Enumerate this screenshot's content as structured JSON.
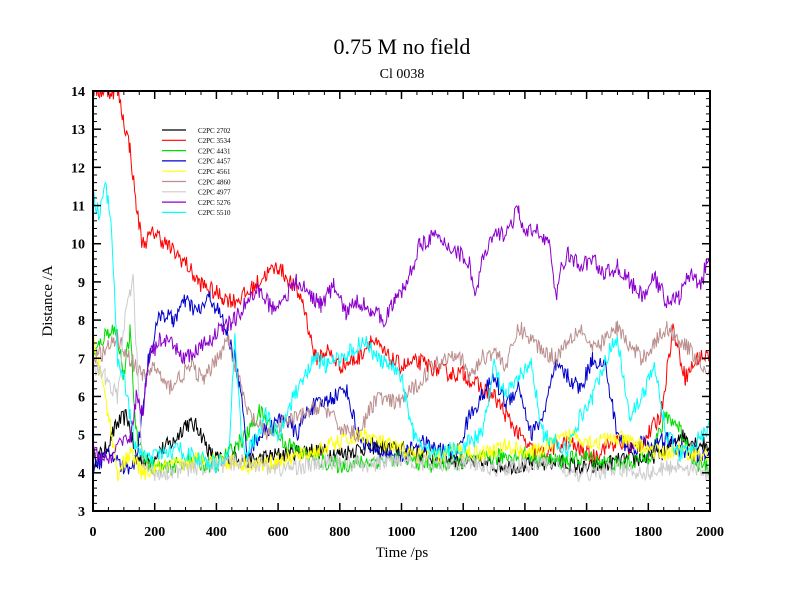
{
  "chart_data": {
    "type": "line",
    "title": "0.75 M no field",
    "subtitle": "Cl 0038",
    "xlabel": "Time /ps",
    "ylabel": "Distance /A",
    "xlim": [
      0,
      2000
    ],
    "ylim": [
      3,
      14
    ],
    "xticks": [
      "0",
      "200",
      "400",
      "600",
      "800",
      "1000",
      "1200",
      "1400",
      "1600",
      "1800",
      "2000"
    ],
    "yticks": [
      "3",
      "4",
      "5",
      "6",
      "7",
      "8",
      "9",
      "10",
      "11",
      "12",
      "13",
      "14"
    ],
    "legend_position": "top-left",
    "series": [
      {
        "name": "C2PC 2702",
        "color": "#000000",
        "x": [
          0,
          40,
          80,
          110,
          140,
          180,
          220,
          260,
          300,
          340,
          380,
          420,
          460,
          500,
          560,
          620,
          700,
          800,
          900,
          1000,
          1100,
          1200,
          1300,
          1400,
          1500,
          1600,
          1700,
          1800,
          1860,
          1900,
          1950,
          2000
        ],
        "y": [
          4.3,
          4.6,
          5.3,
          5.5,
          4.4,
          4.3,
          4.6,
          4.8,
          5.3,
          5.2,
          4.5,
          4.3,
          4.5,
          4.3,
          4.4,
          4.5,
          4.6,
          4.5,
          4.7,
          4.6,
          4.4,
          4.3,
          4.2,
          4.2,
          4.3,
          4.1,
          4.3,
          4.4,
          4.6,
          5.0,
          4.8,
          4.7
        ]
      },
      {
        "name": "C2PC 3534",
        "color": "#ff0000",
        "x": [
          0,
          60,
          80,
          100,
          120,
          140,
          160,
          200,
          260,
          300,
          340,
          380,
          420,
          460,
          500,
          560,
          600,
          640,
          680,
          720,
          760,
          800,
          860,
          900,
          960,
          1000,
          1060,
          1120,
          1160,
          1200,
          1260,
          1300,
          1340,
          1380,
          1420,
          1460,
          1500,
          1540,
          1580,
          1620,
          1660,
          1700,
          1760,
          1800,
          1840,
          1880,
          1920,
          1960,
          2000
        ],
        "y": [
          14,
          14,
          14,
          13.2,
          12.5,
          11,
          10,
          10.3,
          9.8,
          9.5,
          9.0,
          8.8,
          8.6,
          8.5,
          8.7,
          9.2,
          9.4,
          9.0,
          8.5,
          7.0,
          7.2,
          6.8,
          7.0,
          7.5,
          7.0,
          6.8,
          6.9,
          6.7,
          6.6,
          6.6,
          6.2,
          6.0,
          5.5,
          5.0,
          4.6,
          4.5,
          4.7,
          4.8,
          4.6,
          4.4,
          4.7,
          4.8,
          4.6,
          5.0,
          5.5,
          7.8,
          6.5,
          7.0,
          7.1
        ]
      },
      {
        "name": "C2PC 4431",
        "color": "#00dd00",
        "x": [
          0,
          30,
          60,
          80,
          100,
          120,
          140,
          180,
          240,
          300,
          400,
          500,
          540,
          580,
          620,
          700,
          800,
          900,
          1000,
          1100,
          1200,
          1300,
          1400,
          1500,
          1600,
          1700,
          1800,
          1860,
          1900,
          1950,
          2000
        ],
        "y": [
          7.0,
          7.5,
          7.8,
          7.6,
          6.5,
          7.7,
          5.0,
          4.2,
          4.1,
          4.3,
          4.2,
          5.0,
          5.6,
          5.2,
          4.8,
          4.4,
          4.2,
          4.3,
          4.4,
          4.2,
          4.3,
          4.4,
          4.5,
          4.3,
          4.4,
          4.2,
          4.4,
          5.5,
          5.2,
          4.3,
          4.1
        ]
      },
      {
        "name": "C2PC 4457",
        "color": "#0000cc",
        "x": [
          0,
          60,
          100,
          140,
          180,
          220,
          260,
          300,
          340,
          380,
          420,
          460,
          480,
          500,
          540,
          580,
          620,
          660,
          700,
          740,
          780,
          820,
          860,
          900,
          960,
          1000,
          1060,
          1120,
          1180,
          1220,
          1260,
          1300,
          1340,
          1380,
          1420,
          1460,
          1500,
          1540,
          1580,
          1620,
          1660,
          1700,
          1740,
          1780,
          1820,
          1860,
          1900,
          1960,
          2000
        ],
        "y": [
          4.2,
          4.5,
          4.1,
          4.3,
          7.0,
          8.2,
          8.0,
          8.5,
          8.2,
          8.6,
          8.0,
          7.0,
          6.0,
          4.5,
          5.0,
          5.2,
          5.5,
          5.0,
          5.7,
          5.8,
          6.0,
          6.2,
          5.0,
          4.6,
          4.5,
          4.4,
          4.8,
          4.6,
          4.5,
          5.5,
          6.0,
          6.5,
          5.8,
          6.3,
          5.0,
          5.5,
          6.8,
          6.5,
          6.2,
          7.0,
          6.8,
          5.0,
          4.6,
          4.8,
          4.7,
          4.9,
          4.6,
          4.5,
          4.3
        ]
      },
      {
        "name": "C2PC 4561",
        "color": "#ffff00",
        "x": [
          0,
          40,
          80,
          120,
          160,
          200,
          280,
          360,
          440,
          520,
          600,
          700,
          800,
          880,
          960,
          1040,
          1100,
          1180,
          1260,
          1340,
          1420,
          1500,
          1560,
          1620,
          1700,
          1780,
          1840,
          1900,
          1960,
          2000
        ],
        "y": [
          7.5,
          6.0,
          4.0,
          4.5,
          4.0,
          4.1,
          4.2,
          4.4,
          4.3,
          4.2,
          4.3,
          4.5,
          4.8,
          5.0,
          4.7,
          4.5,
          4.4,
          4.6,
          4.5,
          4.7,
          4.5,
          4.8,
          5.0,
          4.8,
          4.9,
          4.7,
          4.5,
          4.6,
          4.5,
          4.4
        ]
      },
      {
        "name": "C2PC 4860",
        "color": "#bc8f8f",
        "x": [
          0,
          40,
          80,
          120,
          160,
          200,
          240,
          280,
          320,
          360,
          400,
          440,
          500,
          560,
          620,
          680,
          740,
          800,
          860,
          920,
          980,
          1040,
          1100,
          1140,
          1180,
          1220,
          1260,
          1300,
          1340,
          1380,
          1420,
          1460,
          1500,
          1540,
          1580,
          1620,
          1660,
          1700,
          1740,
          1780,
          1820,
          1860,
          1900,
          1960,
          2000
        ],
        "y": [
          7.0,
          7.2,
          7.5,
          7.0,
          6.5,
          6.8,
          6.2,
          6.5,
          6.8,
          6.4,
          7.0,
          7.5,
          5.6,
          5.0,
          5.3,
          5.5,
          5.8,
          5.2,
          5.0,
          6.0,
          5.8,
          6.2,
          6.8,
          7.0,
          7.2,
          6.5,
          7.0,
          7.2,
          6.8,
          7.8,
          7.5,
          7.2,
          7.0,
          7.5,
          7.8,
          7.2,
          7.5,
          7.8,
          7.3,
          7.0,
          7.4,
          7.8,
          7.5,
          7.0,
          6.6
        ]
      },
      {
        "name": "C2PC 4977",
        "color": "#cccccc",
        "x": [
          0,
          40,
          80,
          110,
          130,
          160,
          200,
          300,
          400,
          500,
          600,
          700,
          800,
          900,
          1000,
          1100,
          1200,
          1300,
          1400,
          1500,
          1560,
          1600,
          1700,
          1800,
          1900,
          2000
        ],
        "y": [
          6.8,
          6.5,
          6.0,
          8.5,
          9.0,
          4.2,
          4.0,
          4.1,
          4.2,
          4.3,
          4.1,
          4.2,
          4.3,
          4.2,
          4.4,
          4.2,
          4.3,
          4.1,
          4.2,
          4.3,
          3.9,
          4.0,
          4.1,
          4.0,
          4.2,
          4.0
        ]
      },
      {
        "name": "C2PC 5276",
        "color": "#8b00cc",
        "x": [
          0,
          60,
          100,
          120,
          140,
          160,
          180,
          220,
          260,
          300,
          340,
          380,
          420,
          460,
          500,
          540,
          580,
          620,
          660,
          700,
          740,
          780,
          820,
          860,
          900,
          940,
          980,
          1020,
          1060,
          1100,
          1140,
          1180,
          1220,
          1240,
          1260,
          1300,
          1340,
          1380,
          1400,
          1440,
          1480,
          1500,
          1520,
          1540,
          1580,
          1620,
          1660,
          1700,
          1740,
          1780,
          1820,
          1860,
          1900,
          1940,
          1970,
          1990,
          2000
        ],
        "y": [
          4.5,
          4.3,
          5.0,
          4.8,
          6.0,
          5.5,
          7.0,
          7.5,
          7.3,
          7.0,
          7.2,
          7.5,
          7.8,
          8.0,
          8.5,
          8.8,
          8.3,
          8.6,
          9.0,
          8.7,
          8.4,
          8.9,
          8.2,
          8.5,
          8.3,
          8.0,
          8.5,
          9.0,
          10.0,
          10.2,
          10.0,
          9.8,
          9.5,
          8.6,
          9.5,
          10.2,
          10.3,
          10.9,
          10.2,
          10.4,
          10.0,
          8.5,
          9.5,
          9.7,
          9.4,
          9.6,
          9.2,
          9.4,
          9.0,
          8.6,
          9.1,
          8.5,
          8.6,
          9.3,
          8.8,
          9.6,
          9.5
        ]
      },
      {
        "name": "C2PC 5510",
        "color": "#00ffff",
        "x": [
          0,
          20,
          40,
          60,
          80,
          100,
          120,
          140,
          160,
          180,
          220,
          280,
          340,
          400,
          440,
          460,
          480,
          500,
          560,
          600,
          640,
          680,
          720,
          760,
          800,
          840,
          880,
          920,
          960,
          1000,
          1040,
          1100,
          1160,
          1200,
          1260,
          1300,
          1340,
          1380,
          1420,
          1460,
          1500,
          1540,
          1580,
          1620,
          1660,
          1700,
          1740,
          1780,
          1820,
          1860,
          1900,
          1940,
          1980,
          2000
        ],
        "y": [
          11.2,
          10.8,
          11.5,
          10.5,
          7.0,
          6.5,
          5.5,
          4.5,
          4.6,
          4.3,
          4.5,
          4.6,
          4.4,
          4.2,
          4.5,
          7.5,
          5.0,
          4.5,
          5.5,
          5.0,
          5.8,
          6.5,
          7.0,
          6.8,
          7.0,
          7.2,
          7.5,
          7.0,
          6.8,
          6.5,
          5.0,
          4.5,
          4.6,
          4.7,
          5.0,
          6.8,
          6.0,
          6.5,
          6.8,
          5.0,
          4.8,
          4.6,
          5.5,
          6.0,
          7.0,
          7.5,
          5.5,
          6.0,
          6.8,
          5.0,
          4.5,
          4.7,
          5.0,
          5.2
        ]
      }
    ]
  }
}
